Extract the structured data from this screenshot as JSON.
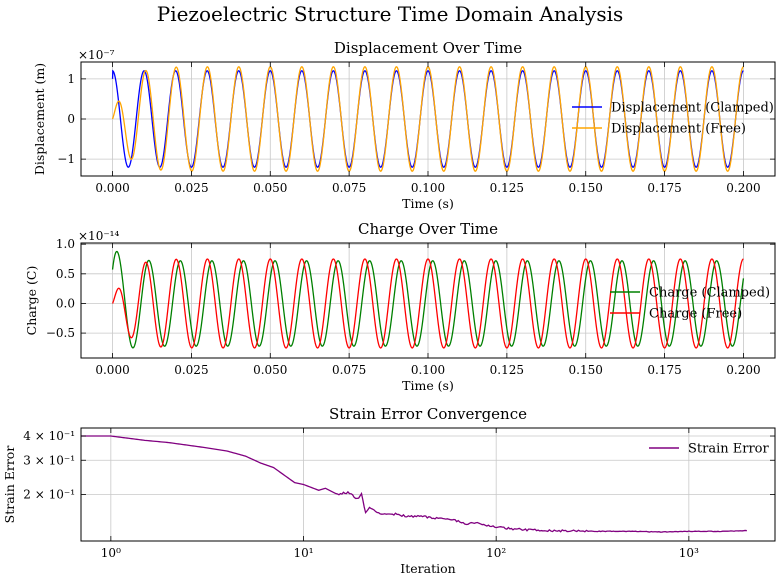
{
  "figure": {
    "suptitle": "Piezoelectric Structure Time Domain Analysis"
  },
  "chart_data": [
    {
      "type": "line",
      "title": "Displacement Over Time",
      "xlabel": "Time (s)",
      "ylabel": "Displacement (m)",
      "offset_label": "×10⁻⁷",
      "xlim": [
        -0.01,
        0.21
      ],
      "ylim": [
        -1.42,
        1.42
      ],
      "xticks": [
        0.0,
        0.025,
        0.05,
        0.075,
        0.1,
        0.125,
        0.15,
        0.175,
        0.2
      ],
      "xticklabels": [
        "0.000",
        "0.025",
        "0.050",
        "0.075",
        "0.100",
        "0.125",
        "0.150",
        "0.175",
        "0.200"
      ],
      "yticks": [
        -1,
        0,
        1
      ],
      "yticklabels": [
        "−1",
        "0",
        "1"
      ],
      "grid": true,
      "legend": "center-right",
      "series": [
        {
          "name": "Displacement (Clamped)",
          "color": "#0000ff",
          "model": "cosine",
          "amplitude": 1.2,
          "frequency_hz": 100,
          "duration": 0.2,
          "values_note_points": [
            [
              0.0,
              1.0
            ],
            [
              0.0025,
              0.0
            ],
            [
              0.005,
              -1.2
            ],
            [
              0.01,
              1.2
            ],
            [
              0.015,
              -1.2
            ],
            [
              0.02,
              1.2
            ],
            [
              0.2,
              1.0
            ]
          ]
        },
        {
          "name": "Displacement (Free)",
          "color": "#ffa500",
          "model": "transient",
          "amplitude": 1.3,
          "frequency_hz": 100,
          "duration": 0.2,
          "values_note_points": [
            [
              0.0,
              0.0
            ],
            [
              0.003,
              -0.1
            ],
            [
              0.006,
              -0.7
            ],
            [
              0.011,
              0.6
            ],
            [
              0.021,
              1.3
            ],
            [
              0.026,
              -1.3
            ],
            [
              0.2,
              1.0
            ]
          ]
        }
      ]
    },
    {
      "type": "line",
      "title": "Charge Over Time",
      "xlabel": "Time (s)",
      "ylabel": "Charge (C)",
      "offset_label": "×10⁻¹⁴",
      "xlim": [
        -0.01,
        0.21
      ],
      "ylim": [
        -0.92,
        1.02
      ],
      "xticks": [
        0.0,
        0.025,
        0.05,
        0.075,
        0.1,
        0.125,
        0.15,
        0.175,
        0.2
      ],
      "xticklabels": [
        "0.000",
        "0.025",
        "0.050",
        "0.075",
        "0.100",
        "0.125",
        "0.150",
        "0.175",
        "0.200"
      ],
      "yticks": [
        -0.5,
        0.0,
        0.5,
        1.0
      ],
      "yticklabels": [
        "−0.5",
        "0.0",
        "0.5",
        "1.0"
      ],
      "grid": true,
      "legend": "center-right",
      "series": [
        {
          "name": "Charge (Clamped)",
          "color": "#008000",
          "model": "decaying-start",
          "amplitude": 0.72,
          "frequency_hz": 100,
          "duration": 0.2,
          "values_note_points": [
            [
              0.0,
              0.8
            ],
            [
              0.002,
              0.95
            ],
            [
              0.006,
              -0.7
            ],
            [
              0.012,
              0.72
            ],
            [
              0.2,
              0.3
            ]
          ]
        },
        {
          "name": "Charge (Free)",
          "color": "#ff0000",
          "model": "transient",
          "amplitude": 0.75,
          "frequency_hz": 100,
          "duration": 0.2,
          "values_note_points": [
            [
              0.0,
              0.0
            ],
            [
              0.003,
              0.25
            ],
            [
              0.007,
              -0.55
            ],
            [
              0.012,
              0.75
            ],
            [
              0.022,
              0.82
            ],
            [
              0.017,
              -0.82
            ],
            [
              0.2,
              0.3
            ]
          ]
        }
      ]
    },
    {
      "type": "line",
      "title": "Strain Error Convergence",
      "xlabel": "Iteration",
      "ylabel": "Strain Error",
      "xscale": "log",
      "yscale": "log",
      "xlim": [
        0.7,
        2800
      ],
      "ylim": [
        0.115,
        0.44
      ],
      "xticks": [
        1,
        10,
        100,
        1000
      ],
      "xticklabels": [
        "10⁰",
        "10¹",
        "10²",
        "10³"
      ],
      "yticks": [
        0.2,
        0.3,
        0.4
      ],
      "yticklabels": [
        "2 × 10⁻¹",
        "3 × 10⁻¹",
        "4 × 10⁻¹"
      ],
      "grid": true,
      "legend": "top-right",
      "series": [
        {
          "name": "Strain Error",
          "color": "#800080",
          "x": [
            0.7,
            1,
            1.5,
            2,
            3,
            4,
            5,
            6,
            7,
            8,
            9,
            10,
            12,
            13,
            15,
            17,
            19,
            20,
            21,
            22,
            25,
            30,
            35,
            40,
            50,
            60,
            70,
            80,
            100,
            120,
            150,
            200,
            300,
            500,
            700,
            1000,
            1500,
            2000
          ],
          "values": [
            0.4,
            0.4,
            0.38,
            0.37,
            0.35,
            0.335,
            0.315,
            0.29,
            0.275,
            0.25,
            0.23,
            0.225,
            0.21,
            0.215,
            0.2,
            0.205,
            0.19,
            0.2,
            0.16,
            0.17,
            0.16,
            0.158,
            0.154,
            0.155,
            0.15,
            0.148,
            0.141,
            0.142,
            0.136,
            0.133,
            0.131,
            0.13,
            0.129,
            0.129,
            0.128,
            0.129,
            0.129,
            0.13
          ]
        }
      ]
    }
  ]
}
